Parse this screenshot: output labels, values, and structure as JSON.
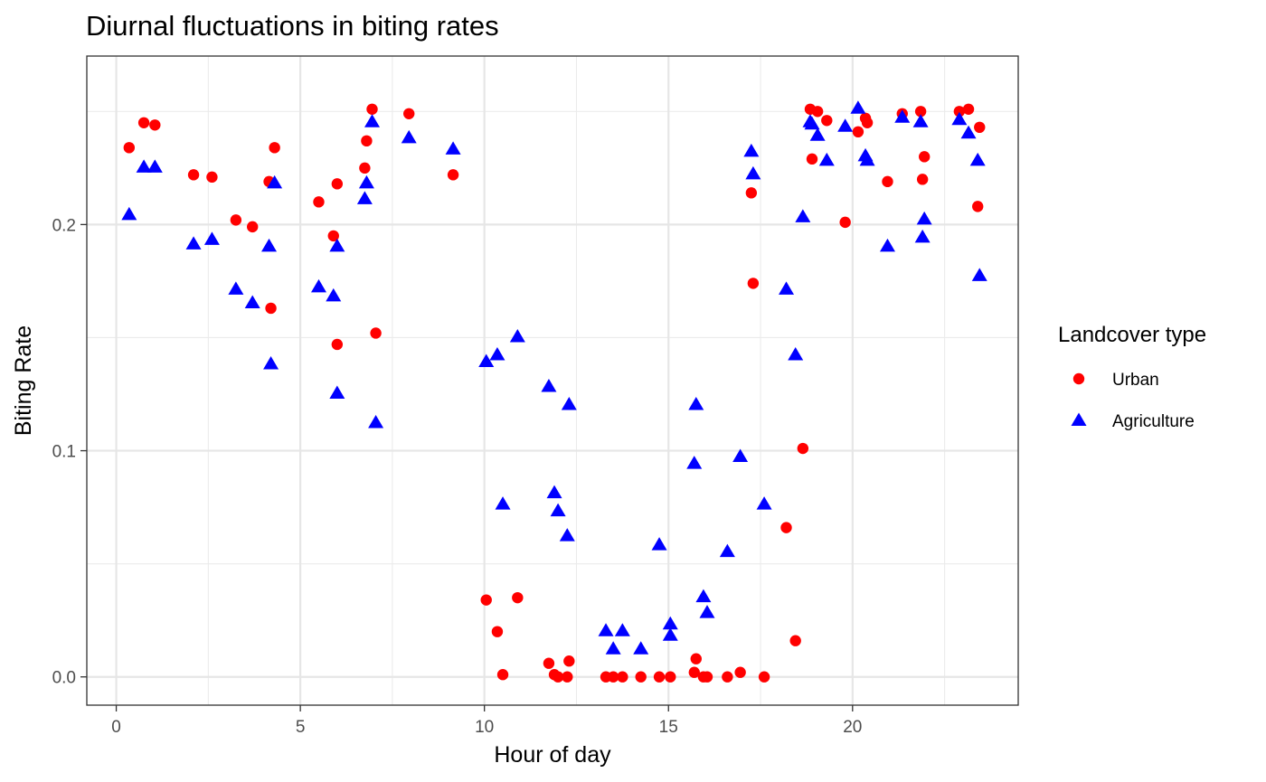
{
  "chart_data": {
    "type": "scatter",
    "title": "Diurnal fluctuations in biting rates",
    "xlabel": "Hour of day",
    "ylabel": "Biting Rate",
    "xlim": [
      -0.8,
      24.5
    ],
    "ylim": [
      -0.0125,
      0.2745
    ],
    "xticks": [
      0,
      5,
      10,
      15,
      20
    ],
    "yticks": [
      0.0,
      0.1,
      0.2
    ],
    "xtick_labels": [
      "0",
      "5",
      "10",
      "15",
      "20"
    ],
    "ytick_labels": [
      "0.0",
      "0.1",
      "0.2"
    ],
    "grid": true,
    "legend": {
      "title": "Landcover type",
      "placement": "right"
    },
    "series": [
      {
        "name": "Urban",
        "marker": "circle",
        "color": "#ff0000",
        "points": [
          [
            0.35,
            0.234
          ],
          [
            0.75,
            0.245
          ],
          [
            1.05,
            0.244
          ],
          [
            2.1,
            0.222
          ],
          [
            2.6,
            0.221
          ],
          [
            3.25,
            0.202
          ],
          [
            3.7,
            0.199
          ],
          [
            4.15,
            0.219
          ],
          [
            4.2,
            0.163
          ],
          [
            4.3,
            0.234
          ],
          [
            5.5,
            0.21
          ],
          [
            5.9,
            0.195
          ],
          [
            6.0,
            0.218
          ],
          [
            6.0,
            0.147
          ],
          [
            6.75,
            0.225
          ],
          [
            6.8,
            0.237
          ],
          [
            6.95,
            0.251
          ],
          [
            7.05,
            0.152
          ],
          [
            7.95,
            0.249
          ],
          [
            9.15,
            0.222
          ],
          [
            10.05,
            0.034
          ],
          [
            10.35,
            0.02
          ],
          [
            10.5,
            0.001
          ],
          [
            10.9,
            0.035
          ],
          [
            11.75,
            0.006
          ],
          [
            11.9,
            0.001
          ],
          [
            12.0,
            0.0
          ],
          [
            12.25,
            0.0
          ],
          [
            12.3,
            0.007
          ],
          [
            13.3,
            0.0
          ],
          [
            13.5,
            0.0
          ],
          [
            13.75,
            0.0
          ],
          [
            14.25,
            0.0
          ],
          [
            14.75,
            0.0
          ],
          [
            15.05,
            0.0
          ],
          [
            15.7,
            0.002
          ],
          [
            15.75,
            0.008
          ],
          [
            15.95,
            0.0
          ],
          [
            16.05,
            0.0
          ],
          [
            16.6,
            0.0
          ],
          [
            16.95,
            0.002
          ],
          [
            17.25,
            0.214
          ],
          [
            17.3,
            0.174
          ],
          [
            17.6,
            0.0
          ],
          [
            18.2,
            0.066
          ],
          [
            18.45,
            0.016
          ],
          [
            18.65,
            0.101
          ],
          [
            18.85,
            0.251
          ],
          [
            18.9,
            0.229
          ],
          [
            19.05,
            0.25
          ],
          [
            19.3,
            0.246
          ],
          [
            19.8,
            0.201
          ],
          [
            20.15,
            0.241
          ],
          [
            20.35,
            0.247
          ],
          [
            20.4,
            0.245
          ],
          [
            20.95,
            0.219
          ],
          [
            21.35,
            0.249
          ],
          [
            21.85,
            0.25
          ],
          [
            21.9,
            0.22
          ],
          [
            21.95,
            0.23
          ],
          [
            22.9,
            0.25
          ],
          [
            23.15,
            0.251
          ],
          [
            23.4,
            0.208
          ],
          [
            23.45,
            0.243
          ]
        ]
      },
      {
        "name": "Agriculture",
        "marker": "triangle",
        "color": "#0000ff",
        "points": [
          [
            0.35,
            0.204
          ],
          [
            0.75,
            0.225
          ],
          [
            1.05,
            0.225
          ],
          [
            2.1,
            0.191
          ],
          [
            2.6,
            0.193
          ],
          [
            3.25,
            0.171
          ],
          [
            3.7,
            0.165
          ],
          [
            4.15,
            0.19
          ],
          [
            4.2,
            0.138
          ],
          [
            4.3,
            0.218
          ],
          [
            5.5,
            0.172
          ],
          [
            5.9,
            0.168
          ],
          [
            6.0,
            0.19
          ],
          [
            6.0,
            0.125
          ],
          [
            6.75,
            0.211
          ],
          [
            6.8,
            0.218
          ],
          [
            6.95,
            0.245
          ],
          [
            7.05,
            0.112
          ],
          [
            7.95,
            0.238
          ],
          [
            9.15,
            0.233
          ],
          [
            10.05,
            0.139
          ],
          [
            10.35,
            0.142
          ],
          [
            10.5,
            0.076
          ],
          [
            10.9,
            0.15
          ],
          [
            11.75,
            0.128
          ],
          [
            11.9,
            0.081
          ],
          [
            12.0,
            0.073
          ],
          [
            12.25,
            0.062
          ],
          [
            12.3,
            0.12
          ],
          [
            13.3,
            0.02
          ],
          [
            13.5,
            0.012
          ],
          [
            13.75,
            0.02
          ],
          [
            14.25,
            0.012
          ],
          [
            14.75,
            0.058
          ],
          [
            15.05,
            0.018
          ],
          [
            15.05,
            0.023
          ],
          [
            15.7,
            0.094
          ],
          [
            15.75,
            0.12
          ],
          [
            15.95,
            0.035
          ],
          [
            16.05,
            0.028
          ],
          [
            16.6,
            0.055
          ],
          [
            16.95,
            0.097
          ],
          [
            17.25,
            0.232
          ],
          [
            17.3,
            0.222
          ],
          [
            17.6,
            0.076
          ],
          [
            18.2,
            0.171
          ],
          [
            18.45,
            0.142
          ],
          [
            18.65,
            0.203
          ],
          [
            18.85,
            0.245
          ],
          [
            18.9,
            0.244
          ],
          [
            19.05,
            0.239
          ],
          [
            19.3,
            0.228
          ],
          [
            19.8,
            0.243
          ],
          [
            20.15,
            0.251
          ],
          [
            20.35,
            0.23
          ],
          [
            20.4,
            0.228
          ],
          [
            20.95,
            0.19
          ],
          [
            21.35,
            0.247
          ],
          [
            21.85,
            0.245
          ],
          [
            21.9,
            0.194
          ],
          [
            21.95,
            0.202
          ],
          [
            22.9,
            0.246
          ],
          [
            23.15,
            0.24
          ],
          [
            23.4,
            0.228
          ],
          [
            23.45,
            0.177
          ]
        ]
      }
    ]
  }
}
